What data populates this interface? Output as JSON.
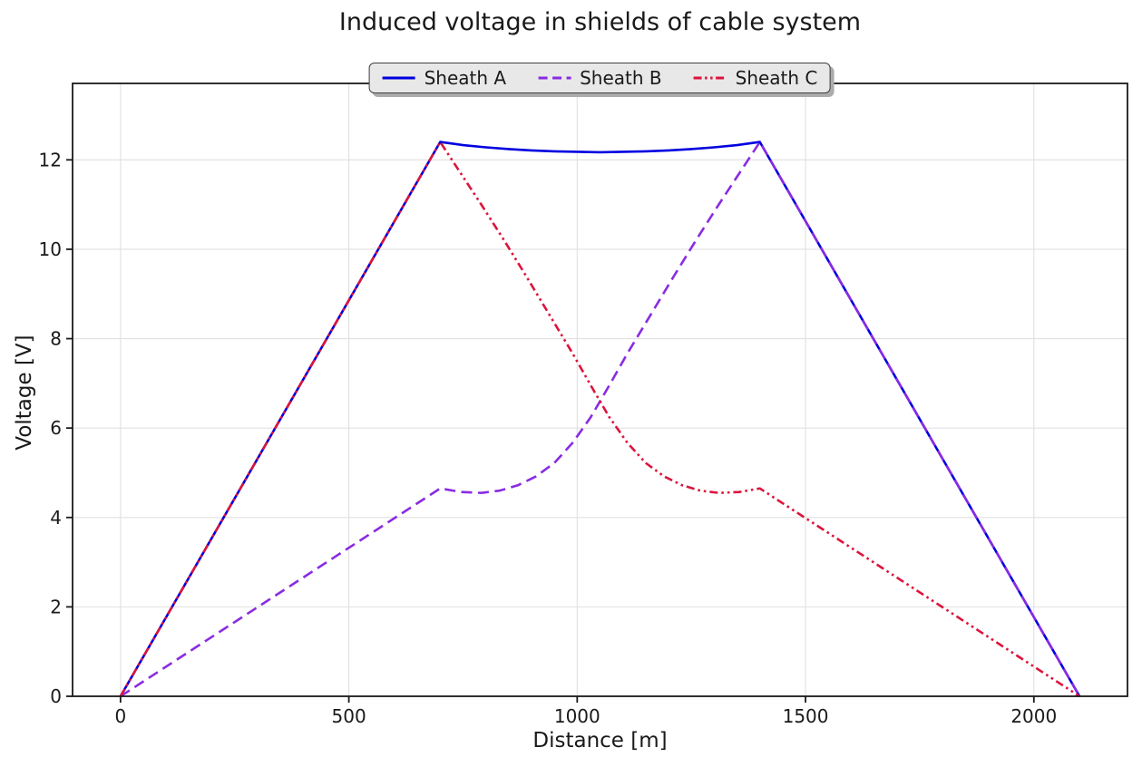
{
  "figure": {
    "background": "#ffffff",
    "text_color": "#1a1a1a",
    "spine_color": "#1a1a1a",
    "grid_color": "#e0e0e0",
    "legend_bg": "#e8e8e8",
    "legend_border": "#3f3f3f",
    "legend_shadow": "#ababab"
  },
  "chart_data": {
    "type": "line",
    "title": "Induced voltage in shields of cable system",
    "xlabel": "Distance [m]",
    "ylabel": "Voltage [V]",
    "xlim": [
      -105,
      2205
    ],
    "ylim": [
      0,
      13.71
    ],
    "xticks": [
      0,
      500,
      1000,
      1500,
      2000
    ],
    "yticks": [
      0,
      2,
      4,
      6,
      8,
      10,
      12
    ],
    "grid": true,
    "legend_position": "top-center",
    "series": [
      {
        "name": "Sheath A",
        "color": "#0000e0",
        "style": "solid",
        "points": [
          [
            0,
            0
          ],
          [
            700,
            12.4
          ],
          [
            750,
            12.33
          ],
          [
            800,
            12.28
          ],
          [
            850,
            12.24
          ],
          [
            900,
            12.21
          ],
          [
            950,
            12.19
          ],
          [
            1000,
            12.18
          ],
          [
            1050,
            12.17
          ],
          [
            1100,
            12.18
          ],
          [
            1150,
            12.19
          ],
          [
            1200,
            12.21
          ],
          [
            1250,
            12.24
          ],
          [
            1300,
            12.28
          ],
          [
            1350,
            12.33
          ],
          [
            1400,
            12.4
          ],
          [
            2100,
            0
          ]
        ]
      },
      {
        "name": "Sheath B",
        "color": "#8a2be2",
        "style": "dashed",
        "points": [
          [
            0,
            0
          ],
          [
            700,
            4.65
          ],
          [
            745,
            4.57
          ],
          [
            790,
            4.55
          ],
          [
            830,
            4.6
          ],
          [
            870,
            4.72
          ],
          [
            910,
            4.92
          ],
          [
            950,
            5.22
          ],
          [
            990,
            5.67
          ],
          [
            1030,
            6.25
          ],
          [
            1070,
            6.95
          ],
          [
            1110,
            7.67
          ],
          [
            1160,
            8.52
          ],
          [
            1210,
            9.37
          ],
          [
            1260,
            10.2
          ],
          [
            1310,
            11.0
          ],
          [
            1355,
            11.7
          ],
          [
            1400,
            12.4
          ],
          [
            2100,
            0
          ]
        ]
      },
      {
        "name": "Sheath C",
        "color": "#dc143c",
        "style": "dashdotdot",
        "points": [
          [
            0,
            0
          ],
          [
            700,
            12.4
          ],
          [
            745,
            11.7
          ],
          [
            790,
            11.0
          ],
          [
            840,
            10.2
          ],
          [
            890,
            9.37
          ],
          [
            940,
            8.52
          ],
          [
            990,
            7.67
          ],
          [
            1030,
            6.95
          ],
          [
            1070,
            6.25
          ],
          [
            1110,
            5.67
          ],
          [
            1150,
            5.22
          ],
          [
            1190,
            4.92
          ],
          [
            1230,
            4.72
          ],
          [
            1270,
            4.6
          ],
          [
            1310,
            4.55
          ],
          [
            1355,
            4.57
          ],
          [
            1400,
            4.65
          ],
          [
            2100,
            0
          ]
        ]
      }
    ]
  }
}
